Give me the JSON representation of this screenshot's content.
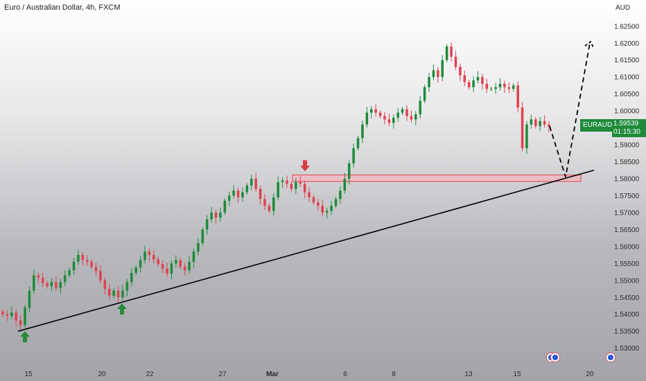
{
  "header": {
    "title": "Euro / Australian Dollar, 4h, FXCM",
    "currency": "AUD"
  },
  "price_tag": {
    "symbol": "EURAUD",
    "price": "1.59539",
    "countdown": "01:15:30"
  },
  "colors": {
    "up": "#1e8a3a",
    "down": "#e0414f",
    "zone_fill": "#f4b6bd",
    "zone_stroke": "#e0414f",
    "trendline": "#000000",
    "arrow_up": "#2a8a3a",
    "arrow_down": "#d83a48"
  },
  "chart_data": {
    "type": "candlestick",
    "y_axis": {
      "ticks": [
        "1.62500",
        "1.62000",
        "1.61500",
        "1.61000",
        "1.60500",
        "1.60000",
        "1.59500",
        "1.59000",
        "1.58500",
        "1.58000",
        "1.57500",
        "1.57000",
        "1.56500",
        "1.56000",
        "1.55500",
        "1.55000",
        "1.54500",
        "1.54000",
        "1.53500",
        "1.53000"
      ],
      "range": [
        1.5285,
        1.6268
      ]
    },
    "x_axis": {
      "ticks": [
        "15",
        "20",
        "22",
        "27",
        "Mar",
        "6",
        "8",
        "13",
        "15",
        "20"
      ]
    },
    "candles_close_path": [
      1.54,
      1.5395,
      1.5405,
      1.5382,
      1.5368,
      1.542,
      1.547,
      1.5515,
      1.5508,
      1.5492,
      1.5483,
      1.5495,
      1.5478,
      1.5495,
      1.5515,
      1.553,
      1.5555,
      1.5575,
      1.556,
      1.5555,
      1.554,
      1.5528,
      1.55,
      1.5475,
      1.5455,
      1.547,
      1.545,
      1.547,
      1.5495,
      1.5522,
      1.5538,
      1.556,
      1.5585,
      1.5575,
      1.5562,
      1.5548,
      1.5535,
      1.552,
      1.555,
      1.556,
      1.554,
      1.553,
      1.5555,
      1.5585,
      1.561,
      1.565,
      1.568,
      1.57,
      1.5685,
      1.57,
      1.5735,
      1.575,
      1.5765,
      1.5745,
      1.576,
      1.578,
      1.58,
      1.577,
      1.574,
      1.572,
      1.5705,
      1.5745,
      1.579,
      1.5795,
      1.5785,
      1.577,
      1.579,
      1.5785,
      1.576,
      1.5745,
      1.573,
      1.572,
      1.57,
      1.5705,
      1.572,
      1.574,
      1.5765,
      1.58,
      1.5845,
      1.589,
      1.592,
      1.596,
      1.5995,
      1.6005,
      1.5995,
      1.5985,
      1.5975,
      1.5965,
      1.598,
      1.5995,
      1.6005,
      1.5985,
      1.5975,
      1.599,
      1.603,
      1.607,
      1.61,
      1.612,
      1.61,
      1.615,
      1.619,
      1.616,
      1.613,
      1.6105,
      1.6085,
      1.607,
      1.609,
      1.61,
      1.608,
      1.6065,
      1.6065,
      1.607,
      1.608,
      1.607,
      1.6065,
      1.6075,
      1.601,
      1.589,
      1.596,
      1.5975,
      1.5955,
      1.597,
      1.596,
      1.5954
    ],
    "support_zone": {
      "low": 1.5798,
      "high": 1.5805
    },
    "trendline": {
      "from": {
        "price": 1.535
      },
      "to": {
        "price": 1.5825
      }
    },
    "projection": {
      "points": [
        1.5955,
        1.5805,
        1.62
      ]
    },
    "markers": [
      {
        "type": "arrow-up",
        "price": 1.5338
      },
      {
        "type": "arrow-up",
        "price": 1.542
      },
      {
        "type": "arrow-down",
        "price": 1.5818
      }
    ]
  }
}
